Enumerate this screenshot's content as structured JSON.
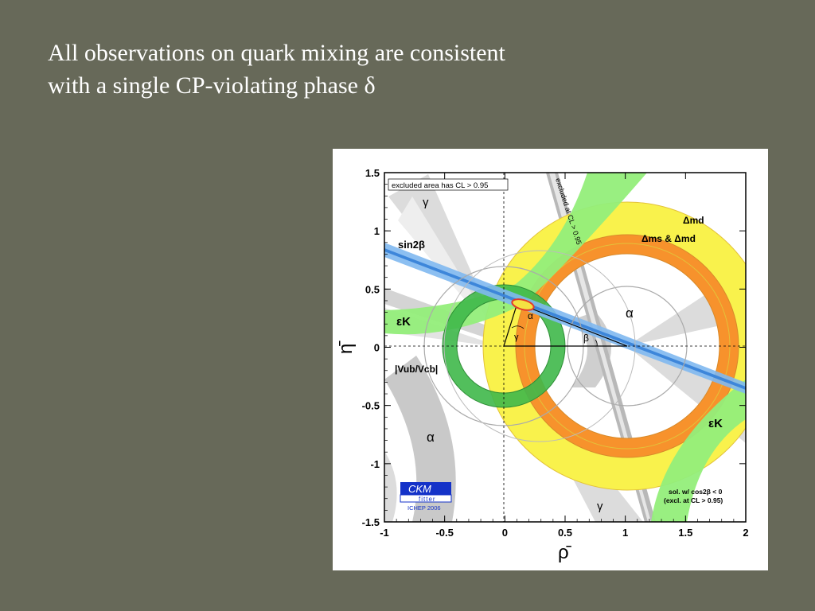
{
  "slide": {
    "title_line1": "All observations on quark mixing are consistent",
    "title_line2": "with a single CP-violating phase δ"
  },
  "chart_data": {
    "type": "scatter",
    "xlabel": "ρ̄",
    "ylabel": "η̄",
    "xlim": [
      -1,
      2
    ],
    "ylim": [
      -1.5,
      1.5
    ],
    "x_ticks": [
      "-1",
      "-0.5",
      "0",
      "0.5",
      "1",
      "1.5",
      "2"
    ],
    "y_ticks": [
      "1.5",
      "1",
      "0.5",
      "0",
      "-0.5",
      "-1",
      "-1.5"
    ],
    "grid": false,
    "excluded_note": "excluded area has CL > 0.95",
    "diagonal_note": "excluded at CL > 0.95",
    "solution_note_line1": "sol. w/ cos2β < 0",
    "solution_note_line2": "(excl. at CL > 0.95)",
    "apex": {
      "rho": 0.2,
      "eta": 0.35
    },
    "constraints": [
      {
        "name": "Δmd",
        "center_rho": 1,
        "radius": 0.9,
        "width": 0.3,
        "color": "#f9f24c"
      },
      {
        "name": "Δms & Δmd",
        "center_rho": 1,
        "radius": 0.8,
        "width": 0.12,
        "color": "#f7922c"
      },
      {
        "name": "|Vub/Vcb|",
        "center_rho": 0,
        "radius": 0.45,
        "width": 0.12,
        "color": "#3fb84a"
      },
      {
        "name": "sin2β",
        "slope": -0.44,
        "color": "#5aa6ec"
      }
    ],
    "labels": {
      "gamma_top": "γ",
      "gamma_bottom": "γ",
      "alpha_left": "α",
      "alpha_right": "α",
      "alpha_apex": "α",
      "beta": "β",
      "gamma_origin": "γ",
      "sin2b": "sin2β",
      "epsK_left": "εK",
      "epsK_right": "εK",
      "vub": "|Vub/Vcb|",
      "dmd": "Δmd",
      "dms": "Δms & Δmd"
    },
    "logo": {
      "line1": "CKM",
      "line2": "fitter",
      "sub": "ICHEP 2006"
    }
  }
}
